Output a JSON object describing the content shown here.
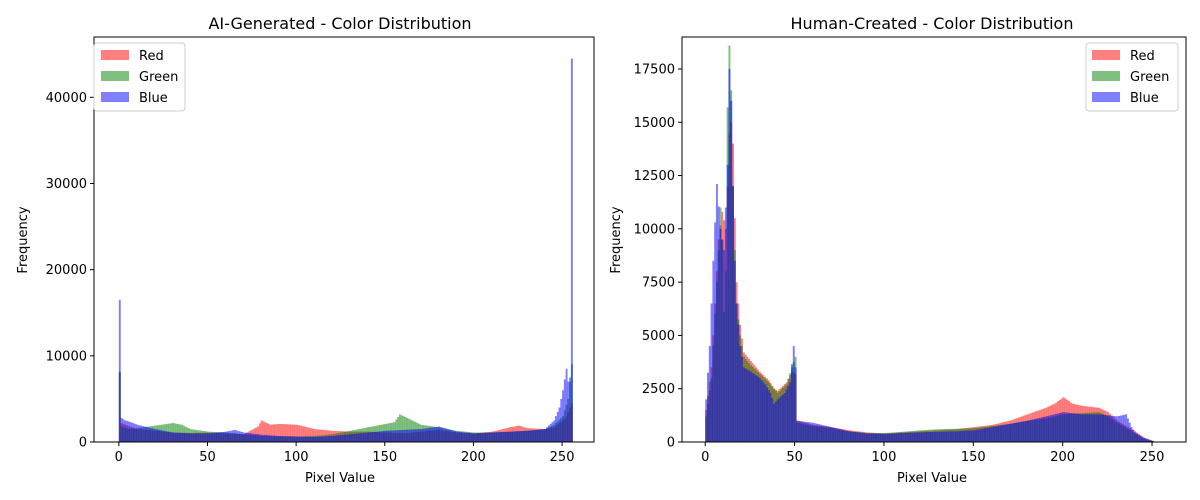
{
  "chart_data": [
    {
      "type": "histogram",
      "title": "AI-Generated - Color Distribution",
      "xlabel": "Pixel Value",
      "ylabel": "Frequency",
      "xlim": [
        -14,
        268
      ],
      "ylim": [
        0,
        47000
      ],
      "xticks": [
        0,
        50,
        100,
        150,
        200,
        250
      ],
      "yticks": [
        0,
        10000,
        20000,
        30000,
        40000
      ],
      "bin_width": 1,
      "legend_position": "top-left",
      "grid": false,
      "series": [
        {
          "name": "Red",
          "color": "#ff0000",
          "alpha": 0.5,
          "points": [
            [
              0,
              8000
            ],
            [
              1,
              2200
            ],
            [
              3,
              2000
            ],
            [
              10,
              1500
            ],
            [
              20,
              1300
            ],
            [
              30,
              1100
            ],
            [
              40,
              1050
            ],
            [
              50,
              1100
            ],
            [
              60,
              1000
            ],
            [
              70,
              900
            ],
            [
              78,
              1800
            ],
            [
              80,
              2500
            ],
            [
              85,
              2000
            ],
            [
              90,
              2100
            ],
            [
              100,
              2000
            ],
            [
              110,
              1500
            ],
            [
              120,
              1300
            ],
            [
              130,
              1200
            ],
            [
              140,
              1200
            ],
            [
              150,
              1100
            ],
            [
              160,
              1000
            ],
            [
              170,
              1200
            ],
            [
              180,
              1400
            ],
            [
              190,
              1100
            ],
            [
              200,
              1000
            ],
            [
              210,
              1200
            ],
            [
              220,
              1700
            ],
            [
              225,
              1900
            ],
            [
              230,
              1600
            ],
            [
              240,
              1500
            ],
            [
              245,
              1700
            ],
            [
              250,
              2500
            ],
            [
              252,
              3000
            ],
            [
              254,
              4000
            ],
            [
              255,
              4500
            ]
          ]
        },
        {
          "name": "Green",
          "color": "#008000",
          "alpha": 0.5,
          "points": [
            [
              0,
              8200
            ],
            [
              1,
              1800
            ],
            [
              5,
              1500
            ],
            [
              10,
              1600
            ],
            [
              20,
              1900
            ],
            [
              30,
              2200
            ],
            [
              35,
              2000
            ],
            [
              40,
              1500
            ],
            [
              50,
              1200
            ],
            [
              60,
              1100
            ],
            [
              70,
              900
            ],
            [
              80,
              700
            ],
            [
              90,
              650
            ],
            [
              100,
              600
            ],
            [
              110,
              700
            ],
            [
              120,
              900
            ],
            [
              130,
              1300
            ],
            [
              140,
              1700
            ],
            [
              150,
              2100
            ],
            [
              155,
              2300
            ],
            [
              158,
              3200
            ],
            [
              165,
              2500
            ],
            [
              170,
              2000
            ],
            [
              180,
              1700
            ],
            [
              190,
              1300
            ],
            [
              200,
              1100
            ],
            [
              210,
              1100
            ],
            [
              220,
              1200
            ],
            [
              230,
              1300
            ],
            [
              240,
              1500
            ],
            [
              245,
              2000
            ],
            [
              250,
              3000
            ],
            [
              253,
              5000
            ],
            [
              255,
              9000
            ]
          ]
        },
        {
          "name": "Blue",
          "color": "#0000ff",
          "alpha": 0.5,
          "points": [
            [
              0,
              16500
            ],
            [
              1,
              2800
            ],
            [
              3,
              2500
            ],
            [
              5,
              2400
            ],
            [
              10,
              2000
            ],
            [
              20,
              1500
            ],
            [
              30,
              1100
            ],
            [
              40,
              1000
            ],
            [
              50,
              1000
            ],
            [
              60,
              1200
            ],
            [
              65,
              1400
            ],
            [
              70,
              1100
            ],
            [
              80,
              850
            ],
            [
              90,
              700
            ],
            [
              100,
              650
            ],
            [
              110,
              600
            ],
            [
              120,
              700
            ],
            [
              130,
              900
            ],
            [
              140,
              1100
            ],
            [
              150,
              1300
            ],
            [
              160,
              1400
            ],
            [
              170,
              1500
            ],
            [
              180,
              1800
            ],
            [
              190,
              1200
            ],
            [
              200,
              1000
            ],
            [
              210,
              1100
            ],
            [
              220,
              1200
            ],
            [
              230,
              1300
            ],
            [
              240,
              1500
            ],
            [
              245,
              2500
            ],
            [
              248,
              4000
            ],
            [
              250,
              6000
            ],
            [
              252,
              8500
            ],
            [
              253,
              7000
            ],
            [
              254,
              7500
            ],
            [
              255,
              44500
            ]
          ]
        }
      ]
    },
    {
      "type": "histogram",
      "title": "Human-Created - Color Distribution",
      "xlabel": "Pixel Value",
      "ylabel": "Frequency",
      "xlim": [
        -13,
        269
      ],
      "ylim": [
        0,
        19000
      ],
      "xticks": [
        0,
        50,
        100,
        150,
        200,
        250
      ],
      "yticks": [
        0,
        2500,
        5000,
        7500,
        10000,
        12500,
        15000,
        17500
      ],
      "bin_width": 1,
      "legend_position": "top-right",
      "grid": false,
      "series": [
        {
          "name": "Red",
          "color": "#ff0000",
          "alpha": 0.5,
          "points": [
            [
              0,
              1500
            ],
            [
              3,
              3500
            ],
            [
              5,
              6500
            ],
            [
              7,
              9500
            ],
            [
              9,
              10800
            ],
            [
              11,
              10000
            ],
            [
              12,
              12000
            ],
            [
              13,
              14500
            ],
            [
              14,
              15000
            ],
            [
              15,
              14000
            ],
            [
              16,
              10500
            ],
            [
              17,
              7500
            ],
            [
              19,
              5500
            ],
            [
              21,
              4200
            ],
            [
              25,
              3800
            ],
            [
              30,
              3300
            ],
            [
              35,
              2900
            ],
            [
              38,
              2500
            ],
            [
              40,
              2400
            ],
            [
              45,
              2800
            ],
            [
              48,
              3300
            ],
            [
              50,
              3200
            ],
            [
              51,
              1000
            ],
            [
              60,
              800
            ],
            [
              70,
              700
            ],
            [
              80,
              550
            ],
            [
              90,
              450
            ],
            [
              100,
              400
            ],
            [
              110,
              450
            ],
            [
              120,
              500
            ],
            [
              130,
              550
            ],
            [
              140,
              600
            ],
            [
              150,
              700
            ],
            [
              160,
              800
            ],
            [
              170,
              1000
            ],
            [
              180,
              1300
            ],
            [
              190,
              1600
            ],
            [
              195,
              1800
            ],
            [
              200,
              2100
            ],
            [
              205,
              1800
            ],
            [
              210,
              1700
            ],
            [
              220,
              1600
            ],
            [
              225,
              1400
            ],
            [
              230,
              1000
            ],
            [
              240,
              500
            ],
            [
              245,
              200
            ],
            [
              250,
              50
            ]
          ]
        },
        {
          "name": "Green",
          "color": "#008000",
          "alpha": 0.5,
          "points": [
            [
              0,
              1200
            ],
            [
              3,
              3000
            ],
            [
              5,
              6000
            ],
            [
              7,
              9000
            ],
            [
              8,
              11000
            ],
            [
              9,
              9500
            ],
            [
              10,
              6100
            ],
            [
              11,
              8000
            ],
            [
              12,
              15700
            ],
            [
              13,
              18600
            ],
            [
              14,
              16500
            ],
            [
              15,
              12000
            ],
            [
              16,
              9000
            ],
            [
              17,
              6500
            ],
            [
              19,
              5000
            ],
            [
              21,
              4000
            ],
            [
              25,
              3600
            ],
            [
              30,
              3200
            ],
            [
              35,
              2800
            ],
            [
              40,
              2300
            ],
            [
              45,
              2700
            ],
            [
              48,
              3500
            ],
            [
              50,
              4000
            ],
            [
              51,
              900
            ],
            [
              60,
              750
            ],
            [
              70,
              650
            ],
            [
              80,
              500
            ],
            [
              90,
              420
            ],
            [
              100,
              420
            ],
            [
              110,
              480
            ],
            [
              120,
              550
            ],
            [
              130,
              600
            ],
            [
              140,
              620
            ],
            [
              150,
              650
            ],
            [
              160,
              750
            ],
            [
              170,
              850
            ],
            [
              180,
              1000
            ],
            [
              190,
              1100
            ],
            [
              200,
              1300
            ],
            [
              210,
              1350
            ],
            [
              220,
              1400
            ],
            [
              225,
              1200
            ],
            [
              230,
              900
            ],
            [
              240,
              400
            ],
            [
              245,
              150
            ],
            [
              250,
              30
            ]
          ]
        },
        {
          "name": "Blue",
          "color": "#0000ff",
          "alpha": 0.5,
          "points": [
            [
              0,
              2000
            ],
            [
              2,
              4500
            ],
            [
              4,
              8500
            ],
            [
              6,
              12100
            ],
            [
              8,
              10000
            ],
            [
              10,
              9000
            ],
            [
              12,
              13000
            ],
            [
              13,
              17500
            ],
            [
              14,
              16000
            ],
            [
              15,
              12000
            ],
            [
              16,
              8500
            ],
            [
              17,
              6500
            ],
            [
              19,
              4500
            ],
            [
              21,
              3500
            ],
            [
              25,
              3300
            ],
            [
              30,
              3000
            ],
            [
              33,
              2700
            ],
            [
              36,
              2300
            ],
            [
              38,
              1800
            ],
            [
              40,
              2000
            ],
            [
              44,
              2300
            ],
            [
              47,
              2800
            ],
            [
              49,
              4500
            ],
            [
              50,
              3500
            ],
            [
              51,
              1000
            ],
            [
              60,
              900
            ],
            [
              70,
              700
            ],
            [
              80,
              500
            ],
            [
              90,
              400
            ],
            [
              100,
              380
            ],
            [
              110,
              420
            ],
            [
              120,
              450
            ],
            [
              130,
              480
            ],
            [
              140,
              500
            ],
            [
              150,
              550
            ],
            [
              160,
              700
            ],
            [
              170,
              850
            ],
            [
              180,
              1000
            ],
            [
              190,
              1200
            ],
            [
              200,
              1400
            ],
            [
              210,
              1300
            ],
            [
              220,
              1300
            ],
            [
              230,
              1200
            ],
            [
              235,
              1300
            ],
            [
              238,
              700
            ],
            [
              240,
              450
            ],
            [
              245,
              200
            ],
            [
              250,
              50
            ]
          ]
        }
      ]
    }
  ]
}
